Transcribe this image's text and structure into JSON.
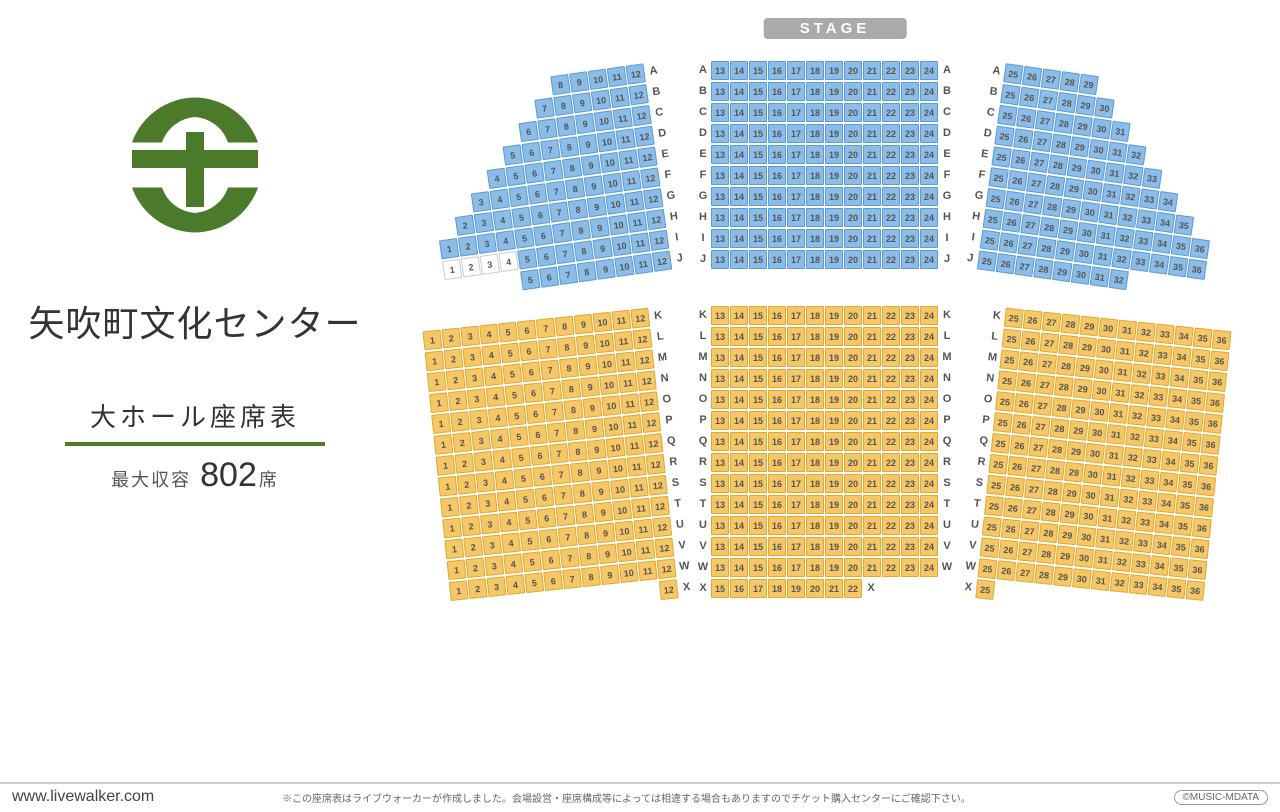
{
  "venue": {
    "title": "矢吹町文化センター",
    "subtitle": "大ホール座席表",
    "capacity_label": "最大収容",
    "capacity_value": "802",
    "capacity_suffix": "席"
  },
  "stage_label": "STAGE",
  "footer": {
    "url": "www.livewalker.com",
    "note": "※この座席表はライブウォーカーが作成しました。会場設営・座席構成等によっては相違する場合もありますのでチケット購入センターにご確認下さい。",
    "copyright": "©MUSIC-MDATA"
  },
  "colors": {
    "logo": "#4a7a2a",
    "front_seat": "#8bbde8",
    "front_seat_border": "#5a9bd4",
    "rear_seat": "#f5c766",
    "rear_seat_border": "#e0a830",
    "white_seat": "#ffffff",
    "divider": "#4a7a2a",
    "stage_bg": "#aaaaaa"
  },
  "seat_size": {
    "w": 18,
    "h": 19,
    "gap": 1
  },
  "front_rows": [
    "A",
    "B",
    "C",
    "D",
    "E",
    "F",
    "G",
    "H",
    "I",
    "J"
  ],
  "rear_rows": [
    "K",
    "L",
    "M",
    "N",
    "O",
    "P",
    "Q",
    "R",
    "S",
    "T",
    "U",
    "V",
    "W",
    "X"
  ],
  "front_left": {
    "color": "blue",
    "rows": {
      "A": [
        8,
        9,
        10,
        11,
        12
      ],
      "B": [
        7,
        8,
        9,
        10,
        11,
        12
      ],
      "C": [
        6,
        7,
        8,
        9,
        10,
        11,
        12
      ],
      "D": [
        5,
        6,
        7,
        8,
        9,
        10,
        11,
        12
      ],
      "E": [
        4,
        5,
        6,
        7,
        8,
        9,
        10,
        11,
        12
      ],
      "F": [
        3,
        4,
        5,
        6,
        7,
        8,
        9,
        10,
        11,
        12
      ],
      "G": [
        2,
        3,
        4,
        5,
        6,
        7,
        8,
        9,
        10,
        11,
        12
      ],
      "H": [
        1,
        2,
        3,
        4,
        5,
        6,
        7,
        8,
        9,
        10,
        11,
        12
      ],
      "I": [
        1,
        2,
        3,
        4,
        5,
        6,
        7,
        8,
        9,
        10,
        11,
        12
      ],
      "J": [
        5,
        6,
        7,
        8,
        9,
        10,
        11,
        12
      ]
    },
    "white_seats": {
      "I": [
        1,
        2,
        3,
        4
      ]
    }
  },
  "front_center": {
    "color": "blue",
    "range": [
      13,
      24
    ]
  },
  "front_right": {
    "color": "blue",
    "rows": {
      "A": [
        25,
        26,
        27,
        28,
        29
      ],
      "B": [
        25,
        26,
        27,
        28,
        29,
        30
      ],
      "C": [
        25,
        26,
        27,
        28,
        29,
        30,
        31
      ],
      "D": [
        25,
        26,
        27,
        28,
        29,
        30,
        31,
        32
      ],
      "E": [
        25,
        26,
        27,
        28,
        29,
        30,
        31,
        32,
        33
      ],
      "F": [
        25,
        26,
        27,
        28,
        29,
        30,
        31,
        32,
        33,
        34
      ],
      "G": [
        25,
        26,
        27,
        28,
        29,
        30,
        31,
        32,
        33,
        34,
        35
      ],
      "H": [
        25,
        26,
        27,
        28,
        29,
        30,
        31,
        32,
        33,
        34,
        35,
        36
      ],
      "I": [
        25,
        26,
        27,
        28,
        29,
        30,
        31,
        32,
        33,
        34,
        35,
        36
      ],
      "J": [
        25,
        26,
        27,
        28,
        29,
        30,
        31,
        32
      ]
    }
  },
  "rear_left": {
    "color": "orange",
    "rows": {
      "K": [
        1,
        2,
        3,
        4,
        5,
        6,
        7,
        8,
        9,
        10,
        11,
        12
      ],
      "L": [
        1,
        2,
        3,
        4,
        5,
        6,
        7,
        8,
        9,
        10,
        11,
        12
      ],
      "M": [
        1,
        2,
        3,
        4,
        5,
        6,
        7,
        8,
        9,
        10,
        11,
        12
      ],
      "N": [
        1,
        2,
        3,
        4,
        5,
        6,
        7,
        8,
        9,
        10,
        11,
        12
      ],
      "O": [
        1,
        2,
        3,
        4,
        5,
        6,
        7,
        8,
        9,
        10,
        11,
        12
      ],
      "P": [
        1,
        2,
        3,
        4,
        5,
        6,
        7,
        8,
        9,
        10,
        11,
        12
      ],
      "Q": [
        1,
        2,
        3,
        4,
        5,
        6,
        7,
        8,
        9,
        10,
        11,
        12
      ],
      "R": [
        1,
        2,
        3,
        4,
        5,
        6,
        7,
        8,
        9,
        10,
        11,
        12
      ],
      "S": [
        1,
        2,
        3,
        4,
        5,
        6,
        7,
        8,
        9,
        10,
        11,
        12
      ],
      "T": [
        1,
        2,
        3,
        4,
        5,
        6,
        7,
        8,
        9,
        10,
        11,
        12
      ],
      "U": [
        1,
        2,
        3,
        4,
        5,
        6,
        7,
        8,
        9,
        10,
        11,
        12
      ],
      "V": [
        1,
        2,
        3,
        4,
        5,
        6,
        7,
        8,
        9,
        10,
        11,
        12
      ],
      "W": [
        1,
        2,
        3,
        4,
        5,
        6,
        7,
        8,
        9,
        10,
        11,
        12
      ],
      "X": [
        12
      ]
    }
  },
  "rear_center": {
    "color": "orange",
    "rows": {
      "K": [
        13,
        14,
        15,
        16,
        17,
        18,
        19,
        20,
        21,
        22,
        23,
        24
      ],
      "L": [
        13,
        14,
        15,
        16,
        17,
        18,
        19,
        20,
        21,
        22,
        23,
        24
      ],
      "M": [
        13,
        14,
        15,
        16,
        17,
        18,
        19,
        20,
        21,
        22,
        23,
        24
      ],
      "N": [
        13,
        14,
        15,
        16,
        17,
        18,
        19,
        20,
        21,
        22,
        23,
        24
      ],
      "O": [
        13,
        14,
        15,
        16,
        17,
        18,
        19,
        20,
        21,
        22,
        23,
        24
      ],
      "P": [
        13,
        14,
        15,
        16,
        17,
        18,
        19,
        20,
        21,
        22,
        23,
        24
      ],
      "Q": [
        13,
        14,
        15,
        16,
        17,
        18,
        19,
        20,
        21,
        22,
        23,
        24
      ],
      "R": [
        13,
        14,
        15,
        16,
        17,
        18,
        19,
        20,
        21,
        22,
        23,
        24
      ],
      "S": [
        13,
        14,
        15,
        16,
        17,
        18,
        19,
        20,
        21,
        22,
        23,
        24
      ],
      "T": [
        13,
        14,
        15,
        16,
        17,
        18,
        19,
        20,
        21,
        22,
        23,
        24
      ],
      "U": [
        13,
        14,
        15,
        16,
        17,
        18,
        19,
        20,
        21,
        22,
        23,
        24
      ],
      "V": [
        13,
        14,
        15,
        16,
        17,
        18,
        19,
        20,
        21,
        22,
        23,
        24
      ],
      "W": [
        13,
        14,
        15,
        16,
        17,
        18,
        19,
        20,
        21,
        22,
        23,
        24
      ],
      "X": [
        15,
        16,
        17,
        18,
        19,
        20,
        21,
        22
      ]
    }
  },
  "rear_right": {
    "color": "orange",
    "rows": {
      "K": [
        25,
        26,
        27,
        28,
        29,
        30,
        31,
        32,
        33,
        34,
        35,
        36
      ],
      "L": [
        25,
        26,
        27,
        28,
        29,
        30,
        31,
        32,
        33,
        34,
        35,
        36
      ],
      "M": [
        25,
        26,
        27,
        28,
        29,
        30,
        31,
        32,
        33,
        34,
        35,
        36
      ],
      "N": [
        25,
        26,
        27,
        28,
        29,
        30,
        31,
        32,
        33,
        34,
        35,
        36
      ],
      "O": [
        25,
        26,
        27,
        28,
        29,
        30,
        31,
        32,
        33,
        34,
        35,
        36
      ],
      "P": [
        25,
        26,
        27,
        28,
        29,
        30,
        31,
        32,
        33,
        34,
        35,
        36
      ],
      "Q": [
        25,
        26,
        27,
        28,
        29,
        30,
        31,
        32,
        33,
        34,
        35,
        36
      ],
      "R": [
        25,
        26,
        27,
        28,
        29,
        30,
        31,
        32,
        33,
        34,
        35,
        36
      ],
      "S": [
        25,
        26,
        27,
        28,
        29,
        30,
        31,
        32,
        33,
        34,
        35,
        36
      ],
      "T": [
        25,
        26,
        27,
        28,
        29,
        30,
        31,
        32,
        33,
        34,
        35,
        36
      ],
      "U": [
        25,
        26,
        27,
        28,
        29,
        30,
        31,
        32,
        33,
        34,
        35,
        36
      ],
      "V": [
        25,
        26,
        27,
        28,
        29,
        30,
        31,
        32,
        33,
        34,
        35,
        36
      ],
      "W": [
        25,
        26,
        27,
        28,
        29,
        30,
        31,
        32,
        33,
        34,
        35,
        36
      ],
      "X": [
        25
      ]
    }
  }
}
